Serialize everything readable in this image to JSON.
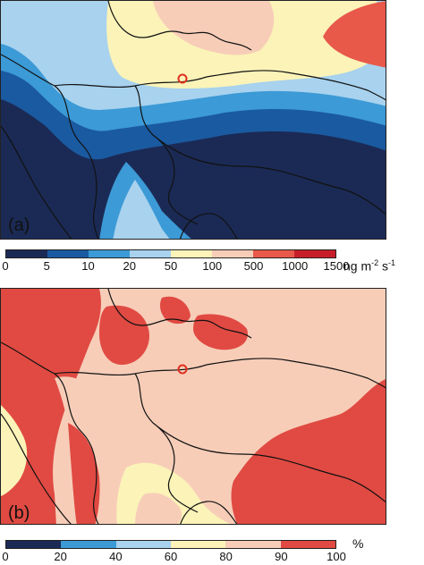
{
  "panel_a": {
    "label": "(a)",
    "colorbar": {
      "colors": [
        "#1b2a55",
        "#1a5aa0",
        "#3c9ad6",
        "#a8d2ee",
        "#fbf3b8",
        "#f7cdb8",
        "#e8594a",
        "#c81e2a"
      ],
      "ticks": [
        "0",
        "5",
        "10",
        "20",
        "50",
        "100",
        "500",
        "1000",
        "1500"
      ]
    },
    "unit": {
      "base": "ng m",
      "exp1": "-2",
      "mid": " s",
      "exp2": "-1"
    }
  },
  "panel_b": {
    "label": "(b)",
    "colorbar": {
      "colors": [
        "#1b2a55",
        "#3c9ad6",
        "#a8d2ee",
        "#fbf3b8",
        "#f7cdb8",
        "#e04a42"
      ],
      "ticks": [
        "0",
        "20",
        "40",
        "60",
        "80",
        "90",
        "100"
      ]
    },
    "unit": "%"
  },
  "site_marker_color": "#e03020"
}
